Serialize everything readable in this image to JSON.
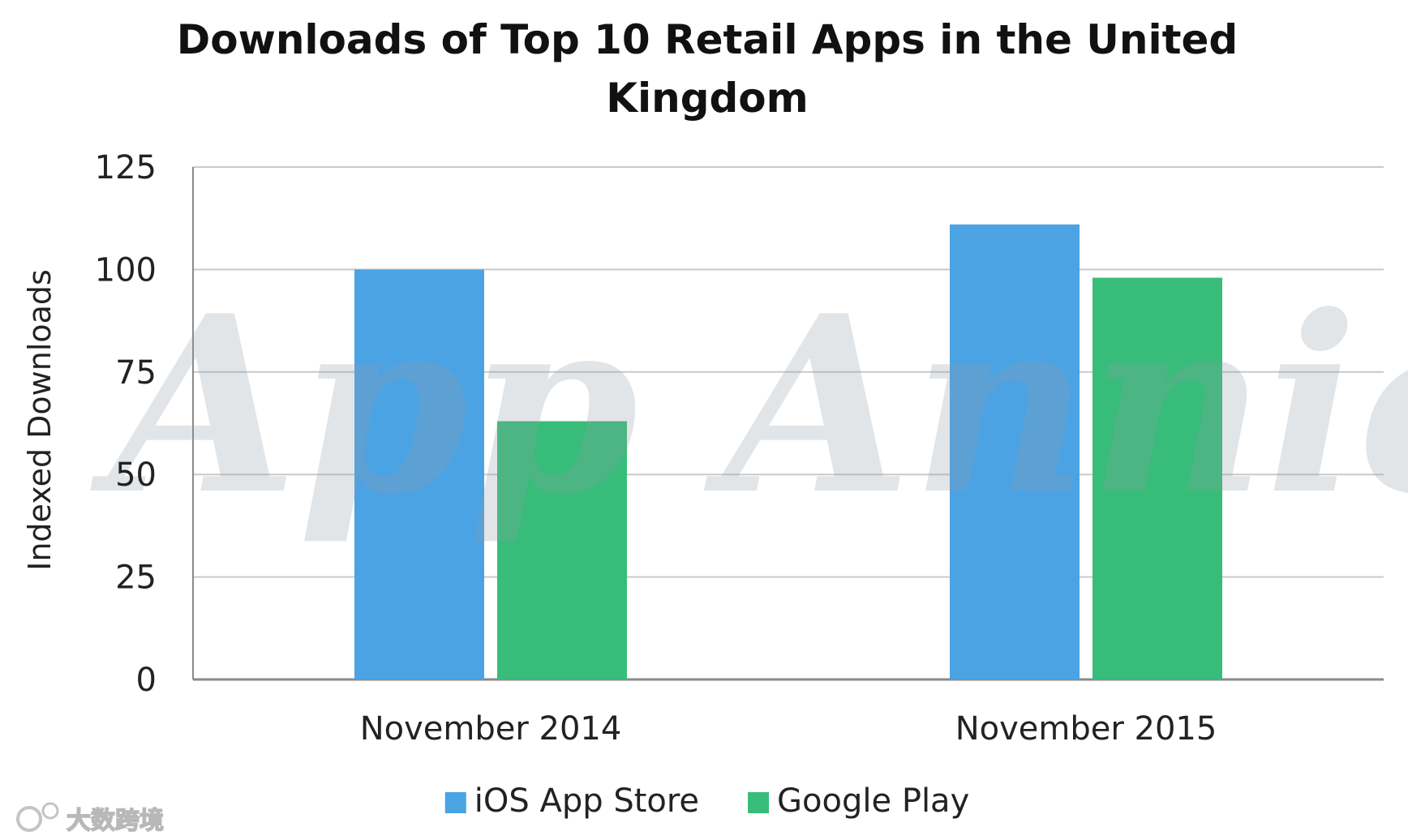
{
  "chart_data": {
    "type": "bar",
    "title_lines": [
      "Downloads of Top 10 Retail Apps in the United",
      "Kingdom"
    ],
    "xlabel": "",
    "ylabel": "Indexed Downloads",
    "categories": [
      "November 2014",
      "November 2015"
    ],
    "series": [
      {
        "name": "iOS App Store",
        "color": "#4BA3E3",
        "values": [
          100,
          111
        ]
      },
      {
        "name": "Google Play",
        "color": "#37BD79",
        "values": [
          63,
          98
        ]
      }
    ],
    "ylim": [
      0,
      125
    ],
    "yticks": [
      "0",
      "25",
      "50",
      "75",
      "100",
      "125"
    ],
    "grid": true,
    "legend_position": "bottom-center"
  },
  "watermark": "App Annie",
  "corner_mark": "大数跨境",
  "colors": {
    "grid": "#c9c9c9",
    "axis": "#8a8a8a"
  }
}
